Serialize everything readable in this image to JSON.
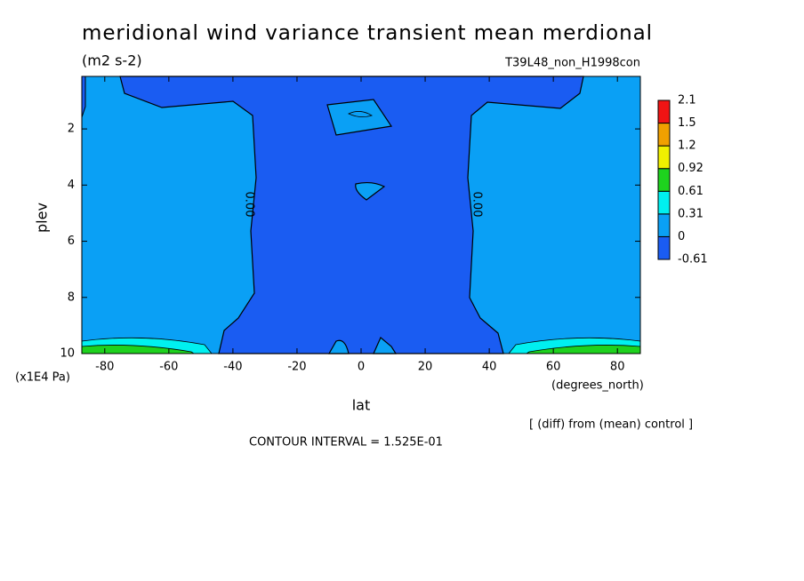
{
  "chart_data": {
    "type": "contour",
    "title": "meridional wind variance transient mean merdional",
    "subtitle": "(m2 s-2)",
    "dataset": "T39L48_non_H1998con",
    "x_label": "lat",
    "x_units": "(degrees_north)",
    "y_label": "plev",
    "y_units": "(x1E4 Pa)",
    "xlim": [
      -87.16,
      87.16
    ],
    "xticks": [
      -80,
      -60,
      -40,
      -20,
      0,
      20,
      40,
      60,
      80
    ],
    "ylim": [
      10,
      0.13
    ],
    "yticks": [
      2,
      4,
      6,
      8,
      10
    ],
    "levels": [
      -0.61,
      0,
      0.31,
      0.61,
      0.92,
      1.2,
      1.5,
      2.1
    ],
    "colors": [
      "#1a5cf2",
      "#0aa0f5",
      "#00f0f0",
      "#1ed21e",
      "#f0f000",
      "#f0a000",
      "#f01414"
    ],
    "contour_labels": [
      "0.00",
      "0.00"
    ],
    "annotations": [
      "[ (diff) from (mean) control ]",
      "CONTOUR INTERVAL = 1.525E-01"
    ]
  }
}
